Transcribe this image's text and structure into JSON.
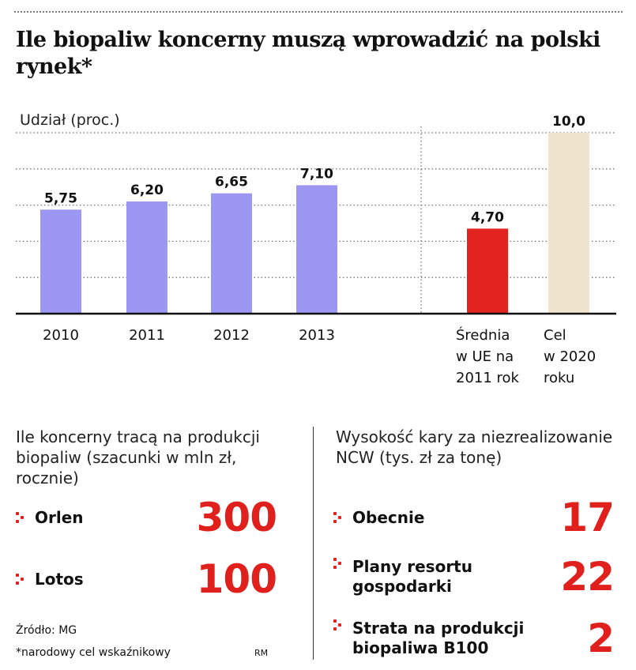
{
  "title": "Ile biopaliw koncerny muszą wprowadzić na polski rynek*",
  "chart_data": {
    "type": "bar",
    "ylabel": "Udział (proc.)",
    "ylim": [
      0,
      10
    ],
    "grid": true,
    "categories": [
      "2010",
      "2011",
      "2012",
      "2013",
      "Średnia w UE na 2011 rok",
      "Cel w 2020 roku"
    ],
    "category_lines": [
      [
        "2010"
      ],
      [
        "2011"
      ],
      [
        "2012"
      ],
      [
        "2013"
      ],
      [
        "Średnia",
        "w UE na",
        "2011 rok"
      ],
      [
        "Cel",
        "w 2020",
        "roku"
      ]
    ],
    "values": [
      5.75,
      6.2,
      6.65,
      7.1,
      4.7,
      10.0
    ],
    "value_labels": [
      "5,75",
      "6,20",
      "6,65",
      "7,10",
      "4,70",
      "10,0"
    ],
    "colors": [
      "#9b97f2",
      "#9b97f2",
      "#9b97f2",
      "#9b97f2",
      "#e2231f",
      "#f1e4cf"
    ]
  },
  "left_panel": {
    "heading": "Ile koncerny tracą na produkcji biopaliw (szacunki w mln zł, rocznie)",
    "items": [
      {
        "label": "Orlen",
        "value": "300"
      },
      {
        "label": "Lotos",
        "value": "100"
      }
    ]
  },
  "right_panel": {
    "heading": "Wysokość kary za niezrealizowanie NCW (tys. zł za tonę)",
    "items": [
      {
        "label": "Obecnie",
        "value": "17"
      },
      {
        "label": "Plany resortu gospodarki",
        "value": "22"
      },
      {
        "label": "Strata na produkcji biopaliwa B100",
        "value": "2"
      }
    ]
  },
  "footer": {
    "source": "Źródło: MG",
    "footnote": "*narodowy cel wskaźnikowy",
    "author": "RM"
  },
  "colors": {
    "accent": "#e0201d",
    "bar_purple": "#9b97f2",
    "bar_red": "#e2231f",
    "bar_beige": "#f1e4cf"
  }
}
